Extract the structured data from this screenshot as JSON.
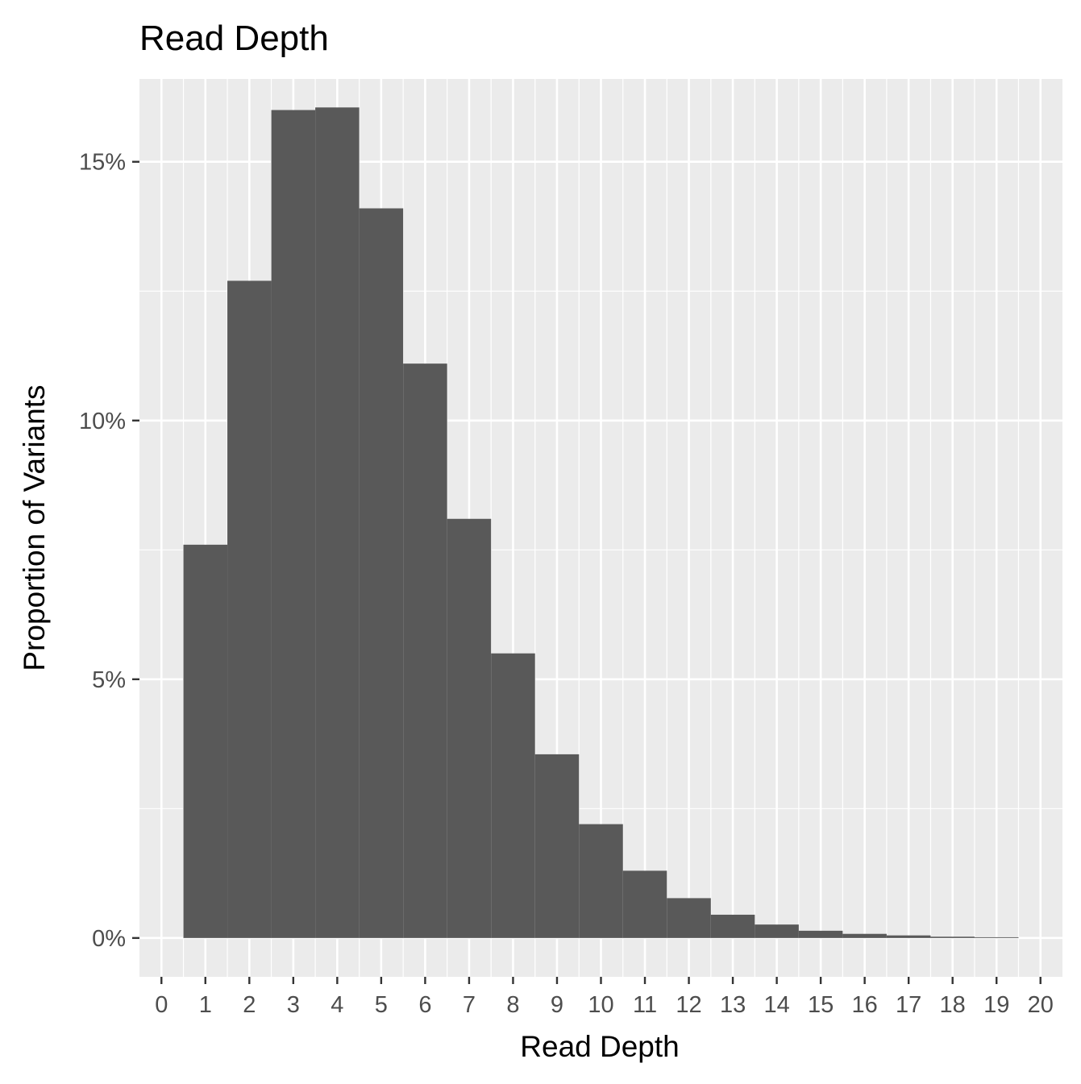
{
  "chart_data": {
    "type": "bar",
    "title": "Read Depth",
    "xlabel": "Read Depth",
    "ylabel": "Proportion of Variants",
    "x_ticks": [
      "0",
      "1",
      "2",
      "3",
      "4",
      "5",
      "6",
      "7",
      "8",
      "9",
      "10",
      "11",
      "12",
      "13",
      "14",
      "15",
      "16",
      "17",
      "18",
      "19",
      "20"
    ],
    "y_ticks": [
      "0%",
      "5%",
      "10%",
      "15%"
    ],
    "y_tick_values": [
      0,
      5,
      10,
      15
    ],
    "xlim": [
      -0.5,
      20.5
    ],
    "ylim": [
      -0.75,
      16.6
    ],
    "grid": true,
    "bars": [
      {
        "x": 1,
        "value": 7.6
      },
      {
        "x": 2,
        "value": 12.7
      },
      {
        "x": 3,
        "value": 16.0
      },
      {
        "x": 4,
        "value": 16.05
      },
      {
        "x": 5,
        "value": 14.1
      },
      {
        "x": 6,
        "value": 11.1
      },
      {
        "x": 7,
        "value": 8.1
      },
      {
        "x": 8,
        "value": 5.5
      },
      {
        "x": 9,
        "value": 3.55
      },
      {
        "x": 10,
        "value": 2.2
      },
      {
        "x": 11,
        "value": 1.3
      },
      {
        "x": 12,
        "value": 0.77
      },
      {
        "x": 13,
        "value": 0.45
      },
      {
        "x": 14,
        "value": 0.26
      },
      {
        "x": 15,
        "value": 0.14
      },
      {
        "x": 16,
        "value": 0.08
      },
      {
        "x": 17,
        "value": 0.05
      },
      {
        "x": 18,
        "value": 0.025
      },
      {
        "x": 19,
        "value": 0.015
      }
    ],
    "colors": {
      "bar": "#595959",
      "panel": "#ebebeb",
      "grid": "#ffffff",
      "tick": "#333333"
    }
  }
}
